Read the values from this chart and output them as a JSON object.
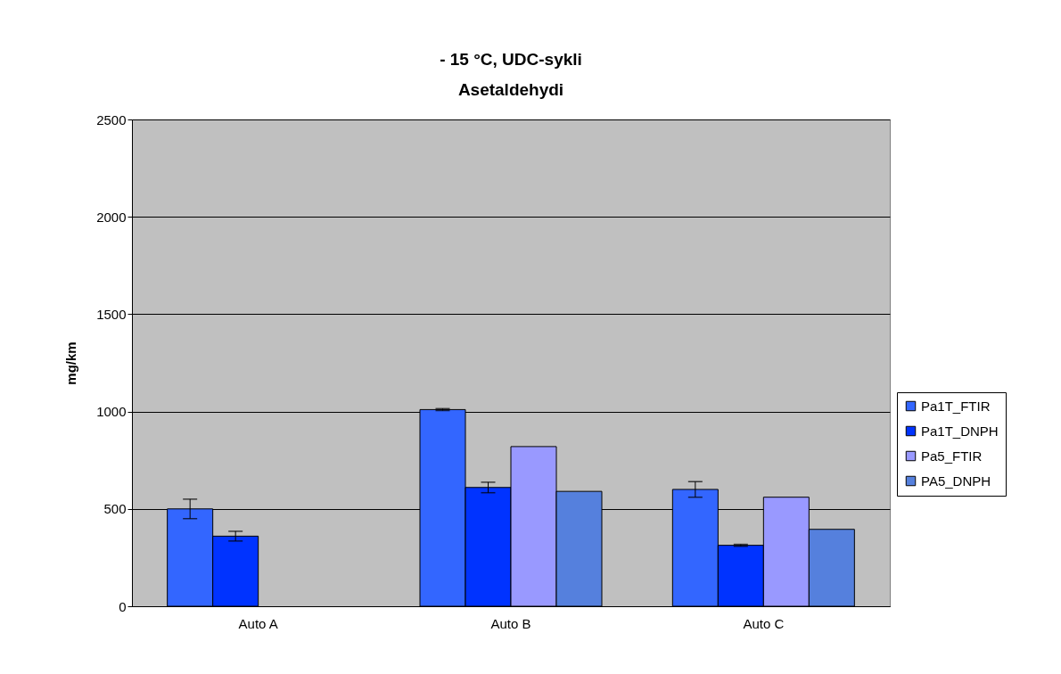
{
  "chart_data": {
    "type": "bar",
    "title": "- 15 °C, UDC-sykli\nAsetaldehydi",
    "ylabel": "mg/km",
    "categories": [
      "Auto A",
      "Auto B",
      "Auto C"
    ],
    "series": [
      {
        "name": "Pa1T_FTIR",
        "color": "#3366ff",
        "values": [
          500,
          1010,
          600
        ],
        "errors": [
          50,
          5,
          40
        ]
      },
      {
        "name": "Pa1T_DNPH",
        "color": "#0033ff",
        "values": [
          360,
          610,
          313
        ],
        "errors": [
          25,
          27,
          5
        ]
      },
      {
        "name": "Pa5_FTIR",
        "color": "#9999ff",
        "values": [
          null,
          820,
          560
        ]
      },
      {
        "name": "PA5_DNPH",
        "color": "#5580dd",
        "values": [
          null,
          590,
          395
        ]
      }
    ],
    "ylim": [
      0,
      2500
    ],
    "yticks": [
      0,
      500,
      1000,
      1500,
      2000,
      2500
    ],
    "grid": "y",
    "legend": "right"
  }
}
